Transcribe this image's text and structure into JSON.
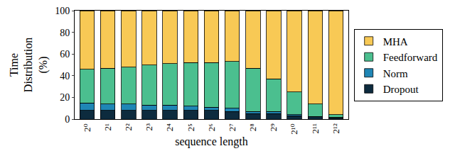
{
  "chart_data": {
    "type": "bar",
    "stacked": true,
    "grid": false,
    "legend": "right",
    "x_label": "sequence length",
    "y_label": "Time Distribution (%)",
    "categories": [
      "2⁰",
      "2¹",
      "2²",
      "2³",
      "2⁴",
      "2⁵",
      "2⁶",
      "2⁷",
      "2⁸",
      "2⁹",
      "2¹⁰",
      "2¹¹",
      "2¹²"
    ],
    "ylim": [
      0,
      100
    ],
    "yticks": [
      0,
      20,
      40,
      60,
      80,
      100
    ],
    "series": [
      {
        "name": "Dropout",
        "color": "#0d2b3e",
        "values": [
          8,
          8,
          8,
          8,
          8,
          8,
          8,
          7,
          5,
          5,
          3,
          2,
          1
        ]
      },
      {
        "name": "Norm",
        "color": "#1f86b5",
        "values": [
          7,
          6,
          6,
          5,
          5,
          4,
          3,
          3,
          2,
          2,
          1,
          0.5,
          0.5
        ]
      },
      {
        "name": "Feedforward",
        "color": "#4bbf8f",
        "values": [
          31,
          33,
          34,
          37,
          38,
          40,
          41,
          43,
          40,
          30,
          21,
          11.5,
          2.5
        ]
      },
      {
        "name": "MHA",
        "color": "#f8c955",
        "values": [
          54,
          53,
          52,
          50,
          49,
          48,
          48,
          47,
          53,
          63,
          75,
          86,
          96
        ]
      }
    ]
  }
}
